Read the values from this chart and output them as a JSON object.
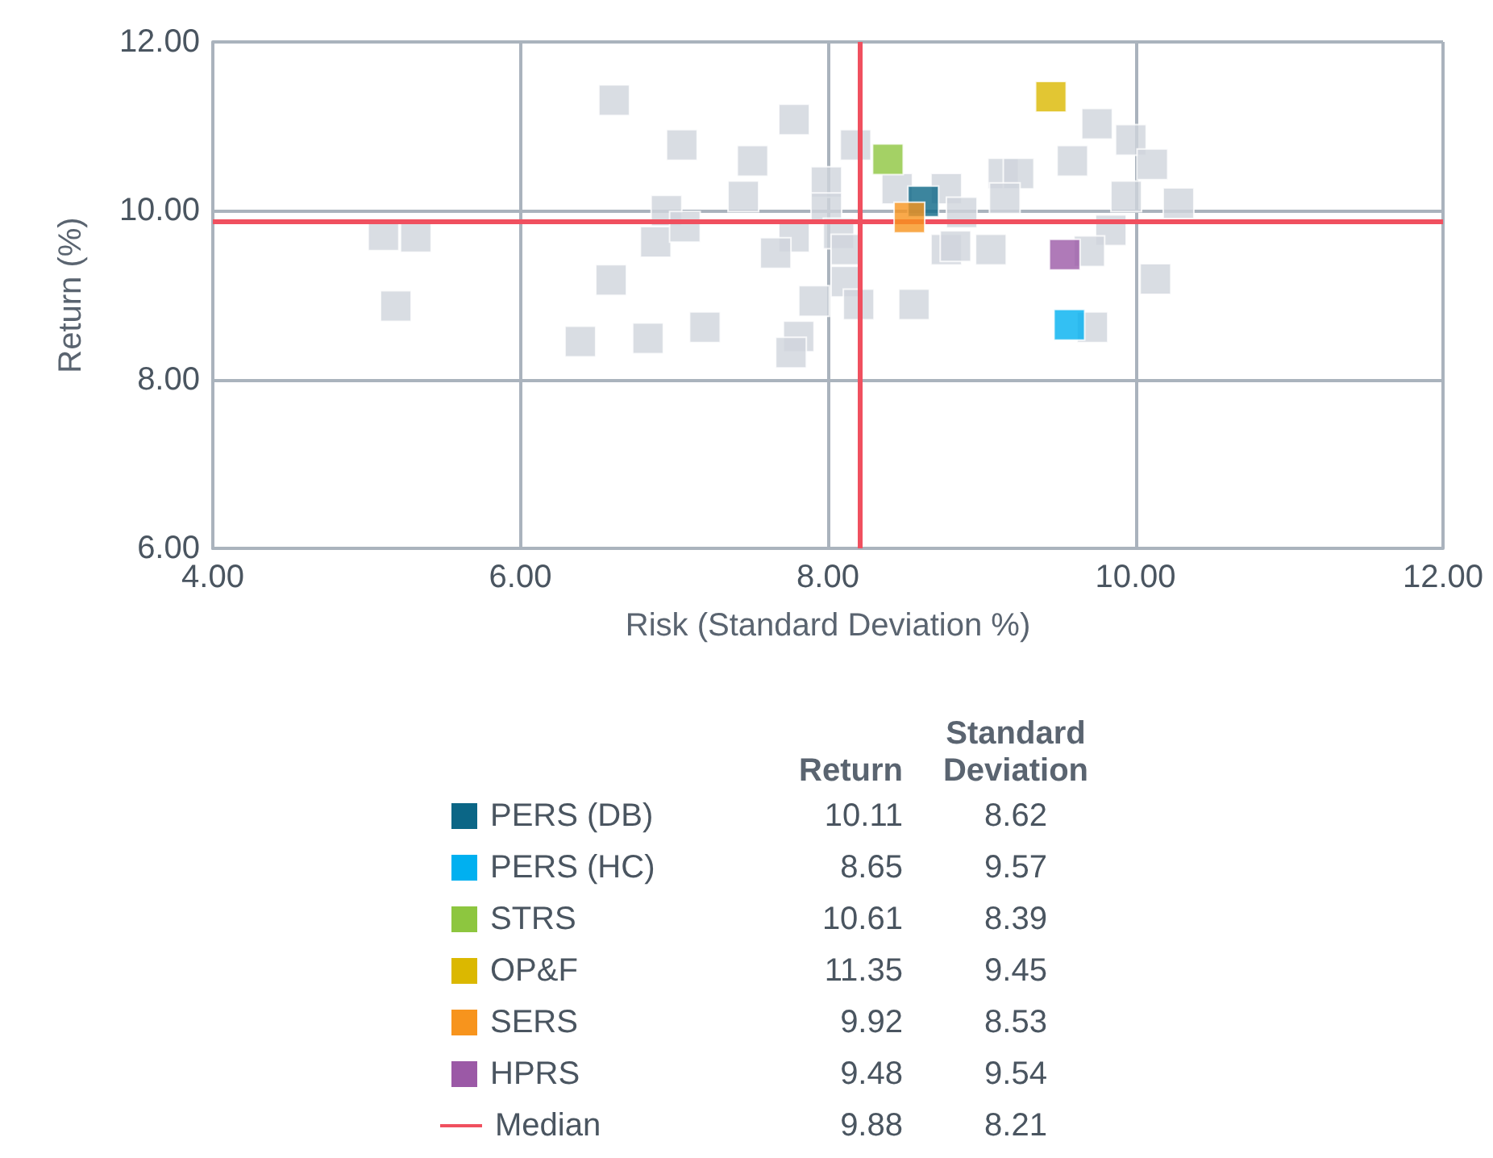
{
  "chart_data": {
    "type": "scatter",
    "xlabel": "Risk (Standard Deviation %)",
    "ylabel": "Return (%)",
    "xlim": [
      4,
      12
    ],
    "xticks": [
      {
        "value": 4,
        "label": "4.00"
      },
      {
        "value": 6,
        "label": "6.00"
      },
      {
        "value": 8,
        "label": "8.00"
      },
      {
        "value": 10,
        "label": "10.00"
      },
      {
        "value": 12,
        "label": "12.00"
      }
    ],
    "ylim": [
      6,
      12
    ],
    "yticks": [
      {
        "value": 6,
        "label": "6.00"
      },
      {
        "value": 8,
        "label": "8.00"
      },
      {
        "value": 10,
        "label": "10.00"
      },
      {
        "value": 12,
        "label": "12.00"
      }
    ],
    "grid": true,
    "legend": "bottom",
    "marker": "square",
    "annotations": [
      "Return",
      "Standard Deviation",
      "10.11",
      "8.62",
      "8.65",
      "9.57",
      "10.61",
      "8.39",
      "11.35",
      "9.45",
      "9.92",
      "8.53",
      "9.48",
      "9.54",
      "9.88",
      "8.21"
    ],
    "ref_lines": [
      {
        "axis": "y",
        "value": 9.88,
        "label": "Median",
        "color": "#f0505f"
      },
      {
        "axis": "x",
        "value": 8.21,
        "label": null,
        "color": "#f0505f"
      }
    ],
    "series": [
      {
        "color": "#cfd5dc",
        "x": [
          5.11,
          5.32,
          5.19,
          6.61,
          6.59,
          6.39,
          6.83,
          7.2,
          6.88,
          6.95,
          7.07,
          7.05,
          7.51,
          7.45,
          7.78,
          7.99,
          7.99,
          7.78,
          7.66,
          7.91,
          7.81,
          7.76,
          8.18,
          8.07,
          8.12,
          8.12,
          8.2,
          8.45,
          8.77,
          8.87,
          8.77,
          8.83,
          9.06,
          8.56,
          9.14,
          9.24,
          9.15,
          9.59,
          9.75,
          9.97,
          10.11,
          9.94,
          10.28,
          9.84,
          9.7,
          10.13,
          9.72
        ],
        "values": [
          9.71,
          9.69,
          8.87,
          11.31,
          9.18,
          8.45,
          8.49,
          8.62,
          9.63,
          10.0,
          9.81,
          10.78,
          10.59,
          10.17,
          11.08,
          10.34,
          10.03,
          9.69,
          9.5,
          8.93,
          8.51,
          8.32,
          10.78,
          9.73,
          9.54,
          9.16,
          8.89,
          10.26,
          10.26,
          9.98,
          9.54,
          9.58,
          9.54,
          8.89,
          10.44,
          10.44,
          10.15,
          10.59,
          11.03,
          10.84,
          10.55,
          10.17,
          10.09,
          9.77,
          9.52,
          9.19,
          8.62
        ]
      },
      {
        "name": "PERS (DB)",
        "color": "#0b6686",
        "x": [
          8.62
        ],
        "values": [
          10.11
        ]
      },
      {
        "name": "PERS (HC)",
        "color": "#00b0f0",
        "x": [
          9.57
        ],
        "values": [
          8.65
        ]
      },
      {
        "name": "STRS",
        "color": "#8dc63f",
        "x": [
          8.39
        ],
        "values": [
          10.61
        ]
      },
      {
        "name": "OP&F",
        "color": "#dbb800",
        "x": [
          9.45
        ],
        "values": [
          11.35
        ]
      },
      {
        "name": "SERS",
        "color": "#f7941d",
        "x": [
          8.53
        ],
        "values": [
          9.92
        ]
      },
      {
        "name": "HPRS",
        "color": "#9b59a6",
        "x": [
          9.54
        ],
        "values": [
          9.48
        ]
      }
    ]
  }
}
